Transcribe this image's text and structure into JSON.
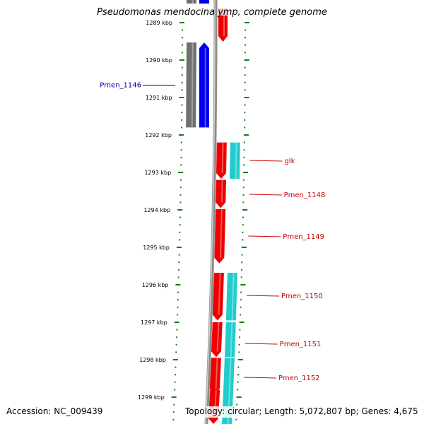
{
  "title": "Pseudomonas mendocina ymp, complete genome",
  "footer": {
    "accession": "Accession: NC_009439",
    "summary": "Topology: circular; Length: 5,072,807 bp; Genes: 4,675"
  },
  "colors": {
    "forward_cds": "#ee0000",
    "reverse_cds": "#0000ee",
    "reverse_gene": "#707070",
    "forward_gene": "#22cccc",
    "label_forward": "#cc0000",
    "label_reverse": "#000099",
    "tick": "#1a7a1a"
  },
  "scale": {
    "unit": "kbp",
    "ticks": [
      1289,
      1290,
      1291,
      1292,
      1293,
      1294,
      1295,
      1296,
      1297,
      1298,
      1299
    ],
    "tick_labels": [
      "1289 kbp",
      "1290 kbp",
      "1291 kbp",
      "1292 kbp",
      "1293 kbp",
      "1294 kbp",
      "1295 kbp",
      "1296 kbp",
      "1297 kbp",
      "1298 kbp",
      "1299 kbp"
    ]
  },
  "features": [
    {
      "label": "Pmen_1146",
      "strand": "reverse",
      "start": 1289.53,
      "end": 1291.8
    },
    {
      "label": "glk",
      "strand": "forward",
      "start": 1292.2,
      "end": 1293.17
    },
    {
      "label": "Pmen_1148",
      "strand": "forward",
      "start": 1293.2,
      "end": 1293.95
    },
    {
      "label": "Pmen_1149",
      "strand": "forward",
      "start": 1293.98,
      "end": 1295.43
    },
    {
      "label": "Pmen_1150",
      "strand": "forward",
      "start": 1295.68,
      "end": 1296.95
    },
    {
      "label": "Pmen_1151",
      "strand": "forward",
      "start": 1297.0,
      "end": 1297.93
    },
    {
      "label": "Pmen_1152",
      "strand": "forward",
      "start": 1297.95,
      "end": 1298.93
    }
  ]
}
